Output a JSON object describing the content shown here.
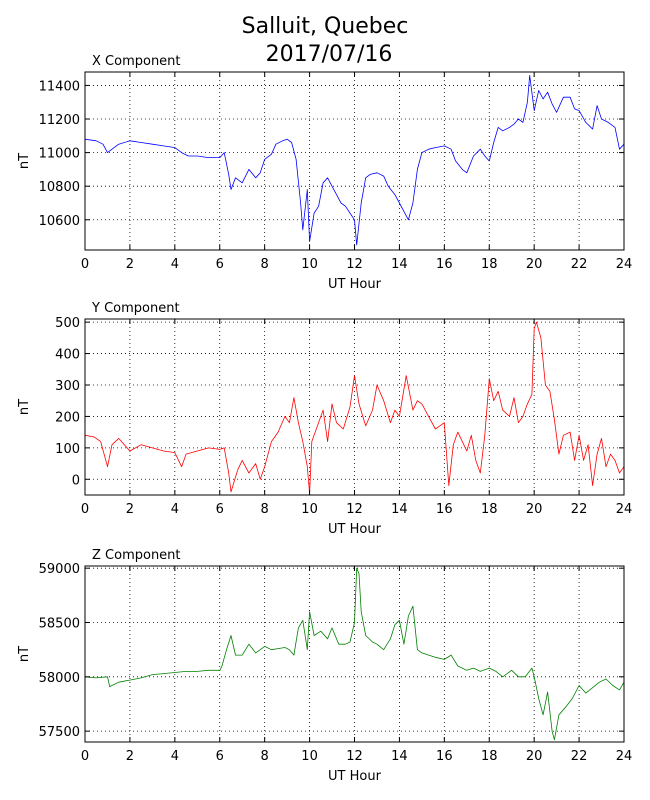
{
  "figure": {
    "title_line1": "Salluit, Quebec",
    "title_line2": "2017/07/16"
  },
  "chart_data": [
    {
      "type": "line",
      "title": "X Component",
      "xlabel": "UT Hour",
      "ylabel": "nT",
      "xlim": [
        0,
        24
      ],
      "ylim": [
        10420,
        11480
      ],
      "xticks": [
        0,
        2,
        4,
        6,
        8,
        10,
        12,
        14,
        16,
        18,
        20,
        22,
        24
      ],
      "yticks": [
        10600,
        10800,
        11000,
        11200,
        11400
      ],
      "grid": true,
      "color": "#0000ff",
      "series": [
        {
          "x": [
            0,
            0.5,
            0.8,
            1.0,
            1.2,
            1.5,
            2.0,
            2.5,
            3.0,
            3.5,
            4.0,
            4.3,
            4.6,
            5.0,
            5.5,
            6.0,
            6.2,
            6.4,
            6.5,
            6.7,
            7.0,
            7.3,
            7.6,
            7.8,
            8.0,
            8.3,
            8.5,
            8.8,
            9.0,
            9.2,
            9.4,
            9.6,
            9.7,
            9.9,
            10.0,
            10.2,
            10.4,
            10.6,
            10.8,
            11.0,
            11.2,
            11.4,
            11.6,
            11.8,
            12.0,
            12.1,
            12.3,
            12.5,
            12.7,
            13.0,
            13.3,
            13.5,
            13.8,
            14.0,
            14.2,
            14.4,
            14.6,
            14.8,
            15.0,
            15.3,
            15.6,
            16.0,
            16.3,
            16.5,
            16.8,
            17.0,
            17.3,
            17.6,
            17.8,
            18.0,
            18.2,
            18.4,
            18.6,
            18.9,
            19.1,
            19.3,
            19.5,
            19.7,
            19.8,
            20.0,
            20.2,
            20.4,
            20.6,
            20.8,
            21.0,
            21.3,
            21.6,
            21.8,
            22.0,
            22.3,
            22.6,
            22.8,
            23.0,
            23.3,
            23.6,
            23.8,
            24.0
          ],
          "y": [
            11080,
            11070,
            11050,
            11000,
            11020,
            11050,
            11070,
            11060,
            11050,
            11040,
            11030,
            11000,
            10980,
            10980,
            10970,
            10970,
            11000,
            10870,
            10780,
            10850,
            10820,
            10900,
            10850,
            10880,
            10960,
            10990,
            11050,
            11070,
            11080,
            11060,
            10960,
            10700,
            10540,
            10780,
            10470,
            10640,
            10680,
            10820,
            10850,
            10800,
            10750,
            10700,
            10680,
            10640,
            10600,
            10450,
            10700,
            10850,
            10870,
            10880,
            10860,
            10800,
            10750,
            10700,
            10650,
            10600,
            10700,
            10900,
            11000,
            11020,
            11030,
            11040,
            11020,
            10950,
            10900,
            10880,
            10980,
            11020,
            10980,
            10950,
            11060,
            11150,
            11130,
            11150,
            11170,
            11200,
            11180,
            11300,
            11460,
            11250,
            11370,
            11320,
            11360,
            11290,
            11240,
            11330,
            11330,
            11260,
            11250,
            11180,
            11140,
            11280,
            11200,
            11180,
            11150,
            11020,
            11050
          ]
        }
      ]
    },
    {
      "type": "line",
      "title": "Y Component",
      "xlabel": "UT Hour",
      "ylabel": "nT",
      "xlim": [
        0,
        24
      ],
      "ylim": [
        -50,
        510
      ],
      "xticks": [
        0,
        2,
        4,
        6,
        8,
        10,
        12,
        14,
        16,
        18,
        20,
        22,
        24
      ],
      "yticks": [
        0,
        100,
        200,
        300,
        400,
        500
      ],
      "grid": true,
      "color": "#ff0000",
      "series": [
        {
          "x": [
            0,
            0.4,
            0.7,
            1.0,
            1.2,
            1.5,
            2.0,
            2.5,
            3.0,
            3.5,
            4.0,
            4.3,
            4.5,
            5.0,
            5.5,
            6.0,
            6.2,
            6.4,
            6.5,
            6.8,
            7.0,
            7.3,
            7.6,
            7.8,
            8.0,
            8.3,
            8.6,
            8.9,
            9.1,
            9.3,
            9.5,
            9.7,
            9.9,
            10.0,
            10.1,
            10.3,
            10.6,
            10.8,
            11.0,
            11.2,
            11.5,
            11.8,
            12.0,
            12.2,
            12.5,
            12.8,
            13.0,
            13.3,
            13.6,
            13.8,
            14.0,
            14.3,
            14.6,
            14.8,
            15.0,
            15.3,
            15.6,
            15.8,
            16.0,
            16.2,
            16.4,
            16.6,
            16.8,
            17.0,
            17.2,
            17.4,
            17.6,
            17.8,
            18.0,
            18.2,
            18.4,
            18.6,
            18.9,
            19.1,
            19.3,
            19.5,
            19.7,
            19.9,
            20.0,
            20.1,
            20.3,
            20.5,
            20.7,
            20.9,
            21.1,
            21.3,
            21.6,
            21.8,
            22.0,
            22.2,
            22.4,
            22.6,
            22.8,
            23.0,
            23.2,
            23.4,
            23.6,
            23.8,
            24.0
          ],
          "y": [
            140,
            135,
            120,
            40,
            110,
            130,
            90,
            110,
            100,
            90,
            85,
            40,
            80,
            90,
            100,
            95,
            100,
            20,
            -40,
            30,
            60,
            20,
            50,
            0,
            40,
            120,
            150,
            200,
            180,
            260,
            180,
            120,
            40,
            -45,
            120,
            160,
            220,
            120,
            240,
            180,
            160,
            230,
            330,
            240,
            170,
            220,
            300,
            250,
            180,
            220,
            200,
            330,
            220,
            250,
            240,
            200,
            160,
            170,
            180,
            -20,
            110,
            150,
            120,
            90,
            140,
            60,
            20,
            140,
            320,
            250,
            280,
            220,
            200,
            260,
            180,
            200,
            240,
            270,
            480,
            500,
            450,
            300,
            280,
            190,
            80,
            140,
            150,
            60,
            140,
            60,
            110,
            -20,
            80,
            130,
            40,
            80,
            60,
            20,
            40
          ]
        }
      ]
    },
    {
      "type": "line",
      "title": "Z Component",
      "xlabel": "UT Hour",
      "ylabel": "nT",
      "xlim": [
        0,
        24
      ],
      "ylim": [
        57400,
        59020
      ],
      "xticks": [
        0,
        2,
        4,
        6,
        8,
        10,
        12,
        14,
        16,
        18,
        20,
        22,
        24
      ],
      "yticks": [
        57500,
        58000,
        58500,
        59000
      ],
      "grid": true,
      "color": "#008000",
      "series": [
        {
          "x": [
            0,
            0.5,
            1.0,
            1.1,
            1.5,
            2.0,
            2.5,
            3.0,
            3.5,
            4.0,
            4.5,
            5.0,
            5.5,
            6.0,
            6.1,
            6.3,
            6.5,
            6.7,
            7.0,
            7.3,
            7.6,
            8.0,
            8.3,
            8.6,
            8.9,
            9.1,
            9.3,
            9.5,
            9.7,
            9.9,
            10.0,
            10.2,
            10.5,
            10.8,
            11.0,
            11.3,
            11.6,
            11.8,
            12.0,
            12.1,
            12.2,
            12.3,
            12.5,
            12.8,
            13.0,
            13.3,
            13.6,
            13.8,
            14.0,
            14.2,
            14.4,
            14.6,
            14.8,
            15.0,
            15.3,
            15.6,
            16.0,
            16.3,
            16.6,
            17.0,
            17.3,
            17.6,
            18.0,
            18.3,
            18.6,
            19.0,
            19.3,
            19.6,
            19.9,
            20.0,
            20.2,
            20.4,
            20.6,
            20.8,
            20.9,
            21.1,
            21.4,
            21.7,
            22.0,
            22.3,
            22.6,
            22.9,
            23.2,
            23.5,
            23.8,
            24.0
          ],
          "y": [
            58000,
            57990,
            58000,
            57910,
            57950,
            57970,
            57990,
            58020,
            58030,
            58040,
            58050,
            58050,
            58060,
            58060,
            58100,
            58250,
            58380,
            58200,
            58200,
            58300,
            58220,
            58280,
            58250,
            58260,
            58270,
            58250,
            58200,
            58450,
            58520,
            58250,
            58600,
            58380,
            58420,
            58350,
            58450,
            58300,
            58300,
            58320,
            58500,
            59000,
            58950,
            58600,
            58380,
            58320,
            58300,
            58250,
            58350,
            58480,
            58520,
            58300,
            58560,
            58650,
            58250,
            58220,
            58200,
            58180,
            58160,
            58200,
            58100,
            58060,
            58080,
            58050,
            58080,
            58050,
            58000,
            58060,
            58000,
            58000,
            58080,
            58000,
            57800,
            57650,
            57860,
            57500,
            57420,
            57650,
            57720,
            57800,
            57920,
            57850,
            57900,
            57950,
            57980,
            57920,
            57880,
            57950
          ]
        }
      ]
    }
  ]
}
